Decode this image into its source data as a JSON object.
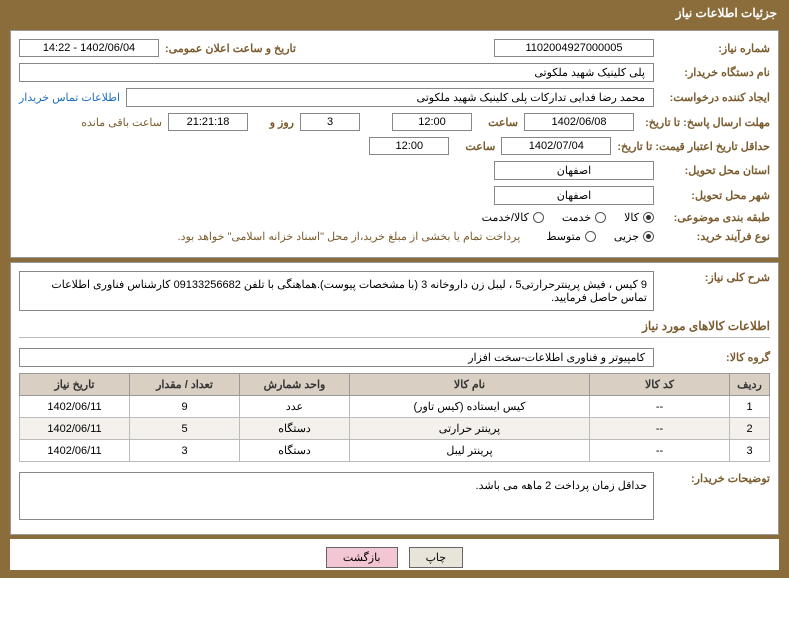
{
  "header": {
    "title": "جزئیات اطلاعات نیاز"
  },
  "top": {
    "need_no_label": "شماره نیاز:",
    "need_no": "1102004927000005",
    "announce_label": "تاریخ و ساعت اعلان عمومی:",
    "announce_value": "1402/06/04 - 14:22",
    "buyer_org_label": "نام دستگاه خریدار:",
    "buyer_org": "پلی کلینیک شهید ملکوتی",
    "requester_label": "ایجاد کننده درخواست:",
    "requester": "محمد رضا  فدایی تدارکات پلی کلینیک شهید ملکوتی",
    "contact_link": "اطلاعات تماس خریدار",
    "deadline_label": "مهلت ارسال پاسخ: تا تاریخ:",
    "deadline_date": "1402/06/08",
    "hour_label": "ساعت",
    "deadline_hour": "12:00",
    "days_label": "روز و",
    "days_value": "3",
    "remain_time": "21:21:18",
    "remain_suffix": "ساعت باقی مانده",
    "validity_label": "حداقل تاریخ اعتبار قیمت: تا تاریخ:",
    "validity_date": "1402/07/04",
    "validity_hour": "12:00",
    "province_label": "استان محل تحویل:",
    "province": "اصفهان",
    "city_label": "شهر محل تحویل:",
    "city": "اصفهان",
    "subject_class_label": "طبقه بندی موضوعی:",
    "class_goods": "کالا",
    "class_service": "خدمت",
    "class_both": "کالا/خدمت",
    "process_label": "نوع فرآیند خرید:",
    "proc_small": "جزیی",
    "proc_medium": "متوسط",
    "process_note": "پرداخت تمام یا بخشی از مبلغ خرید،از محل \"اسناد خزانه اسلامی\" خواهد بود."
  },
  "desc": {
    "overall_label": "شرح کلی نیاز:",
    "overall_text": "9  کیس ، فیش پرینترحرارتی5 ، لیبل زن داروخانه  3  (با مشخصات پیوست).هماهنگی با تلفن 09133256682 کارشناس فناوری اطلاعات تماس حاصل فرمایید."
  },
  "goods": {
    "section_title": "اطلاعات کالاهای مورد نیاز",
    "group_label": "گروه کالا:",
    "group_value": "کامپیوتر و فناوری اطلاعات-سخت افزار",
    "columns": {
      "idx": "ردیف",
      "code": "کد کالا",
      "name": "نام کالا",
      "unit": "واحد شمارش",
      "qty": "تعداد / مقدار",
      "date": "تاریخ نیاز"
    },
    "rows": [
      {
        "idx": "1",
        "code": "--",
        "name": "کیس ایستاده (کیس تاور)",
        "unit": "عدد",
        "qty": "9",
        "date": "1402/06/11"
      },
      {
        "idx": "2",
        "code": "--",
        "name": "پرینتر حرارتی",
        "unit": "دستگاه",
        "qty": "5",
        "date": "1402/06/11"
      },
      {
        "idx": "3",
        "code": "--",
        "name": "پرینتر لیبل",
        "unit": "دستگاه",
        "qty": "3",
        "date": "1402/06/11"
      }
    ]
  },
  "buyer_notes": {
    "label": "توضیحات خریدار:",
    "text": "حداقل زمان پرداخت 2 ماهه می باشد."
  },
  "buttons": {
    "print": "چاپ",
    "back": "بازگشت"
  },
  "style": {
    "brand_bg": "#8a6d3b",
    "label_color": "#7a5c2e",
    "th_bg": "#d9d0c3",
    "link_color": "#1a6ebd"
  }
}
